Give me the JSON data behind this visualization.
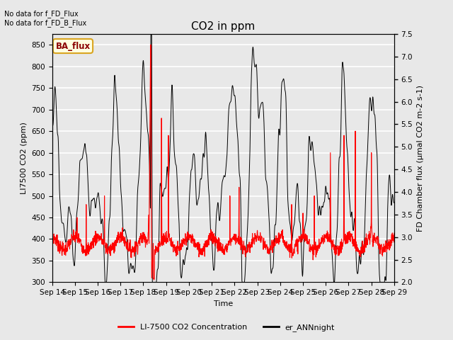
{
  "title": "CO2 in ppm",
  "xlabel": "Time",
  "ylabel_left": "LI7500 CO2 (ppm)",
  "ylabel_right": "FD Chamber flux (μmal CO2 m-2 s-1)",
  "ylim_left": [
    300,
    875
  ],
  "ylim_right": [
    2.0,
    7.5
  ],
  "yticks_left": [
    300,
    350,
    400,
    450,
    500,
    550,
    600,
    650,
    700,
    750,
    800,
    850
  ],
  "yticks_right": [
    2.0,
    2.5,
    3.0,
    3.5,
    4.0,
    4.5,
    5.0,
    5.5,
    6.0,
    6.5,
    7.0,
    7.5
  ],
  "xtick_labels": [
    "Sep 14",
    "Sep 15",
    "Sep 16",
    "Sep 17",
    "Sep 18",
    "Sep 19",
    "Sep 20",
    "Sep 21",
    "Sep 22",
    "Sep 23",
    "Sep 24",
    "Sep 25",
    "Sep 26",
    "Sep 27",
    "Sep 28",
    "Sep 29"
  ],
  "annotation_top": "No data for f_FD_Flux\nNo data for f_FD_B_Flux",
  "ba_flux_label": "BA_flux",
  "legend_entries": [
    "LI-7500 CO2 Concentration",
    "er_ANNnight"
  ],
  "line_colors": [
    "red",
    "black"
  ],
  "background_color": "#e8e8e8",
  "grid_color": "#d0d0d0",
  "title_fontsize": 11,
  "label_fontsize": 8,
  "tick_fontsize": 7.5
}
